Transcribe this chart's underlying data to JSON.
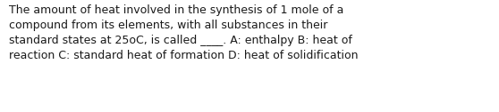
{
  "text": "The amount of heat involved in the synthesis of 1 mole of a\ncompound from its elements, with all substances in their\nstandard states at 25oC, is called ____. A: enthalpy B: heat of\nreaction C: standard heat of formation D: heat of solidification",
  "background_color": "#ffffff",
  "text_color": "#1a1a1a",
  "font_size": 9.0,
  "fig_width": 5.58,
  "fig_height": 1.26,
  "dpi": 100
}
